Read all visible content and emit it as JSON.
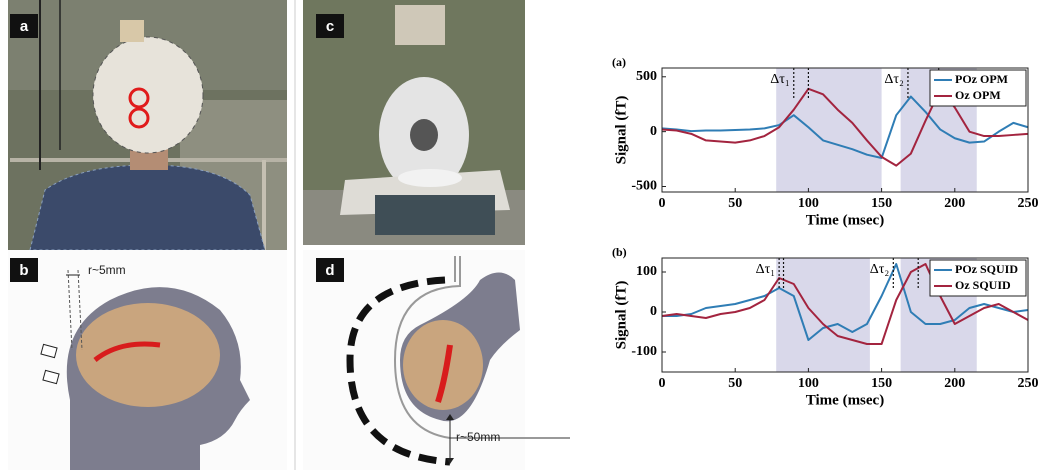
{
  "panels": {
    "labels": [
      "a",
      "b",
      "c",
      "d"
    ],
    "annotations": [
      "r~5mm",
      "r~50mm"
    ]
  },
  "chart_data": [
    {
      "type": "line",
      "panel_label": "(a)",
      "ylabel": "Signal (fT)",
      "xlabel": "Time (msec)",
      "x": [
        0,
        10,
        20,
        30,
        40,
        50,
        60,
        70,
        80,
        90,
        100,
        110,
        120,
        130,
        140,
        150,
        160,
        170,
        180,
        190,
        200,
        210,
        220,
        230,
        240,
        250
      ],
      "xlim": [
        0,
        250
      ],
      "xticks": [
        0,
        50,
        100,
        150,
        200,
        250
      ],
      "ylim": [
        -550,
        580
      ],
      "yticks": [
        -500,
        0,
        500
      ],
      "shade": [
        [
          78,
          150
        ],
        [
          163,
          215
        ]
      ],
      "annotations": [
        {
          "text": "Δτ₁",
          "x": [
            90,
            100
          ]
        },
        {
          "text": "Δτ₂",
          "x": [
            168,
            189
          ]
        }
      ],
      "series": [
        {
          "name": "POz OPM",
          "color": "#2f7db5",
          "values": [
            30,
            20,
            5,
            10,
            10,
            15,
            20,
            30,
            60,
            150,
            40,
            -80,
            -120,
            -160,
            -210,
            -240,
            150,
            320,
            180,
            20,
            -60,
            -100,
            -90,
            0,
            80,
            40
          ]
        },
        {
          "name": "Oz OPM",
          "color": "#a3243f",
          "values": [
            20,
            10,
            -20,
            -80,
            -90,
            -100,
            -80,
            -40,
            40,
            200,
            390,
            340,
            200,
            80,
            -80,
            -230,
            -310,
            -200,
            100,
            380,
            220,
            0,
            -40,
            -40,
            -30,
            -20
          ]
        }
      ]
    },
    {
      "type": "line",
      "panel_label": "(b)",
      "ylabel": "Signal (fT)",
      "xlabel": "Time (msec)",
      "x": [
        0,
        10,
        20,
        30,
        40,
        50,
        60,
        70,
        80,
        90,
        100,
        110,
        120,
        130,
        140,
        150,
        160,
        170,
        180,
        190,
        200,
        210,
        220,
        230,
        240,
        250
      ],
      "xlim": [
        0,
        250
      ],
      "xticks": [
        0,
        50,
        100,
        150,
        200,
        250
      ],
      "ylim": [
        -150,
        135
      ],
      "yticks": [
        -100,
        0,
        100
      ],
      "shade": [
        [
          78,
          142
        ],
        [
          163,
          215
        ]
      ],
      "annotations": [
        {
          "text": "Δτ₁",
          "x": [
            80,
            83
          ]
        },
        {
          "text": "Δτ₂",
          "x": [
            158,
            175
          ]
        }
      ],
      "series": [
        {
          "name": "POz SQUID",
          "color": "#2f7db5",
          "values": [
            -10,
            -10,
            -5,
            10,
            15,
            20,
            30,
            40,
            60,
            40,
            -70,
            -40,
            -30,
            -50,
            -30,
            40,
            120,
            0,
            -30,
            -30,
            -20,
            10,
            20,
            10,
            0,
            5
          ]
        },
        {
          "name": "Oz SQUID",
          "color": "#a3243f",
          "values": [
            -10,
            -5,
            -10,
            -15,
            -5,
            0,
            10,
            30,
            85,
            70,
            10,
            -30,
            -60,
            -70,
            -80,
            -80,
            30,
            100,
            120,
            40,
            -30,
            -10,
            10,
            20,
            0,
            -20
          ]
        }
      ]
    }
  ]
}
